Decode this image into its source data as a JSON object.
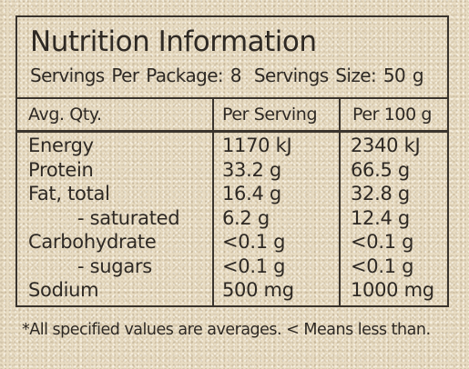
{
  "panel": {
    "title": "Nutrition Information",
    "servings_per_package": "Servings Per Package: 8",
    "serving_size": "Servings Size: 50 g"
  },
  "table": {
    "headers": [
      "Avg. Qty.",
      "Per Serving",
      "Per 100 g"
    ],
    "rows": [
      {
        "label": "Energy",
        "per_serving": "1170 kJ",
        "per_100g": "2340 kJ",
        "indent": false
      },
      {
        "label": "Protein",
        "per_serving": "33.2 g",
        "per_100g": "66.5 g",
        "indent": false
      },
      {
        "label": "Fat,  total",
        "per_serving": "16.4 g",
        "per_100g": "32.8 g",
        "indent": false
      },
      {
        "label": "- saturated",
        "per_serving": "6.2 g",
        "per_100g": "12.4 g",
        "indent": true
      },
      {
        "label": "Carbohydrate",
        "per_serving": "<0.1 g",
        "per_100g": "<0.1 g",
        "indent": false
      },
      {
        "label": "- sugars",
        "per_serving": "<0.1 g",
        "per_100g": "<0.1 g",
        "indent": true
      },
      {
        "label": "Sodium",
        "per_serving": "500 mg",
        "per_100g": "1000 mg",
        "indent": false
      }
    ]
  },
  "footnote": "*All specified values are averages. < Means less than.",
  "colors": {
    "ink": "#2e2924",
    "border": "#3a342d",
    "background": "#e8dcc3"
  }
}
